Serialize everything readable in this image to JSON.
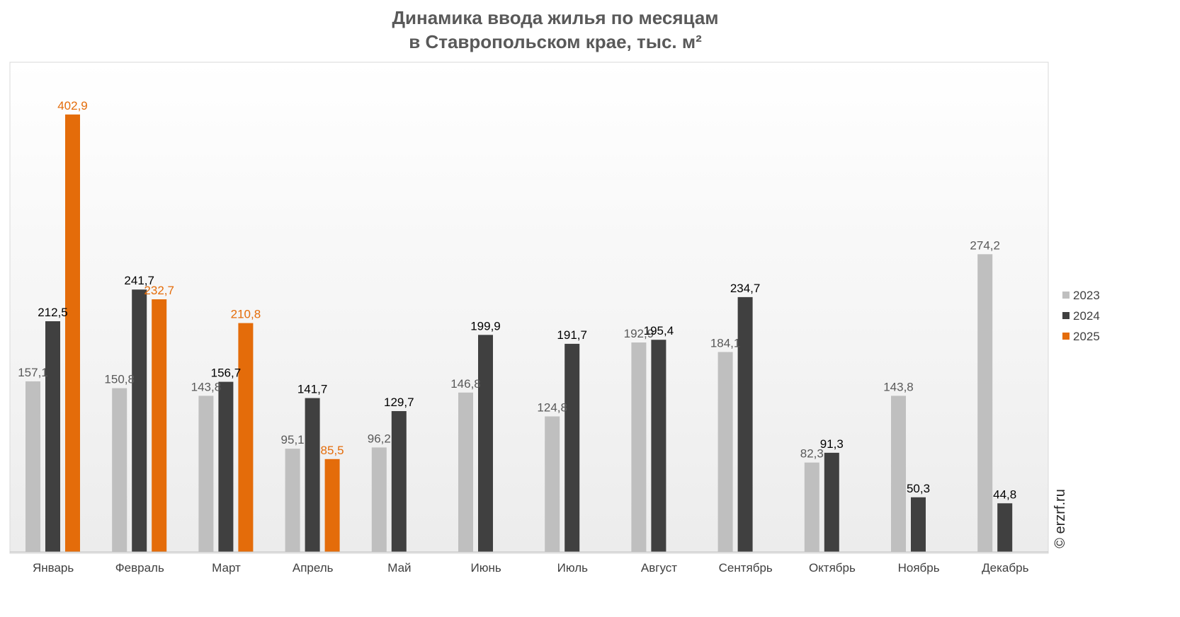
{
  "chart_data": {
    "type": "bar",
    "title_line1": "Динамика ввода жилья по месяцам",
    "title_line2": "в Ставропольском крае, тыс. м²",
    "xlabel": "",
    "ylabel": "",
    "ylim": [
      0,
      440
    ],
    "grid": false,
    "legend_position": "right",
    "categories": [
      "Январь",
      "Февраль",
      "Март",
      "Апрель",
      "Май",
      "Июнь",
      "Июль",
      "Август",
      "Сентябрь",
      "Октябрь",
      "Ноябрь",
      "Декабрь"
    ],
    "series": [
      {
        "name": "2023",
        "color": "#bfbfbf",
        "label_color": "#595959",
        "values": [
          157.1,
          150.8,
          143.8,
          95.1,
          96.2,
          146.8,
          124.8,
          192.9,
          184.1,
          82.3,
          143.8,
          274.2
        ],
        "labels": [
          "157,1",
          "150,8",
          "143,8",
          "95,1",
          "96,2",
          "146,8",
          "124,8",
          "192,9",
          "184,1",
          "82,3",
          "143,8",
          "274,2"
        ]
      },
      {
        "name": "2024",
        "color": "#404040",
        "label_color": "#000000",
        "values": [
          212.5,
          241.7,
          156.7,
          141.7,
          129.7,
          199.9,
          191.7,
          195.4,
          234.7,
          91.3,
          50.3,
          44.8
        ],
        "labels": [
          "212,5",
          "241,7",
          "156,7",
          "141,7",
          "129,7",
          "199,9",
          "191,7",
          "195,4",
          "234,7",
          "91,3",
          "50,3",
          "44,8"
        ]
      },
      {
        "name": "2025",
        "color": "#e46c0a",
        "label_color": "#e46c0a",
        "values": [
          402.9,
          232.7,
          210.8,
          85.5,
          null,
          null,
          null,
          null,
          null,
          null,
          null,
          null
        ],
        "labels": [
          "402,9",
          "232,7",
          "210,8",
          "85,5",
          null,
          null,
          null,
          null,
          null,
          null,
          null,
          null
        ]
      }
    ],
    "source": "© erzrf.ru"
  }
}
